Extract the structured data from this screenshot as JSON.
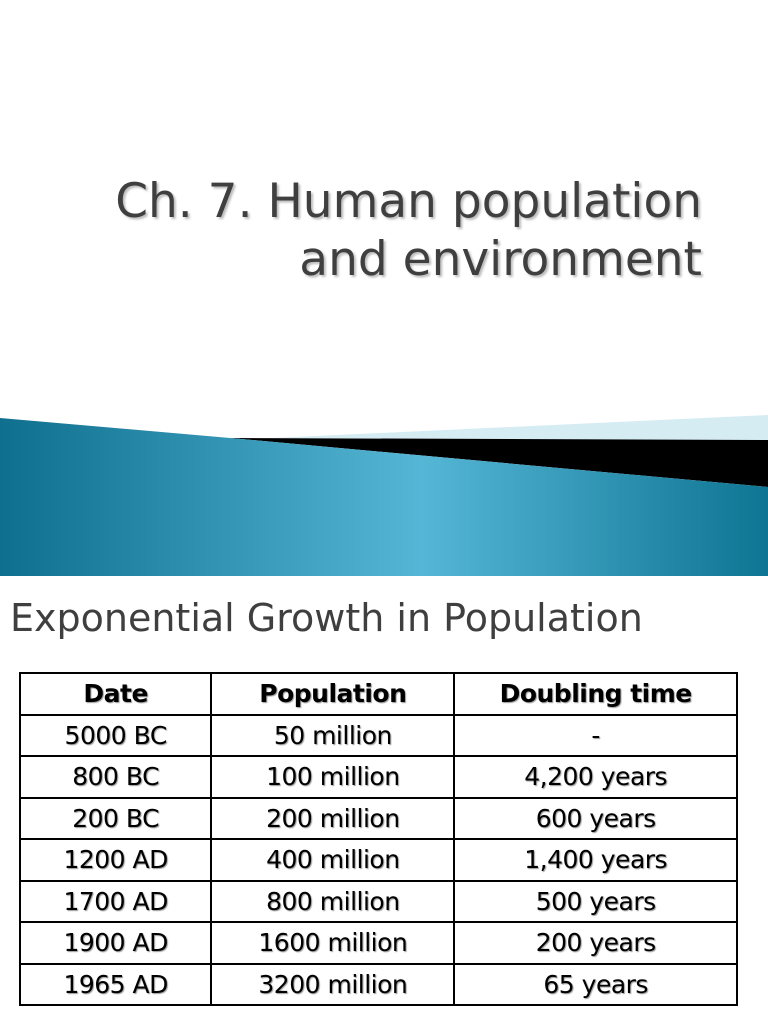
{
  "slide1": {
    "title_lines": [
      "Ch. 7. Human population",
      "and environment"
    ]
  },
  "slide2": {
    "title": "Exponential Growth in Population",
    "table": {
      "header": [
        "Date",
        "Population",
        "Doubling time"
      ],
      "rows": [
        [
          "5000 BC",
          "50 million",
          "-"
        ],
        [
          "800 BC",
          "100 million",
          "4,200 years"
        ],
        [
          "200 BC",
          "200 million",
          "600 years"
        ],
        [
          "1200 AD",
          "400 million",
          "1,400 years"
        ],
        [
          "1700 AD",
          "800 million",
          "500 years"
        ],
        [
          "1900 AD",
          "1600 million",
          "200 years"
        ],
        [
          "1965 AD",
          "3200 million",
          "65 years"
        ]
      ]
    }
  }
}
